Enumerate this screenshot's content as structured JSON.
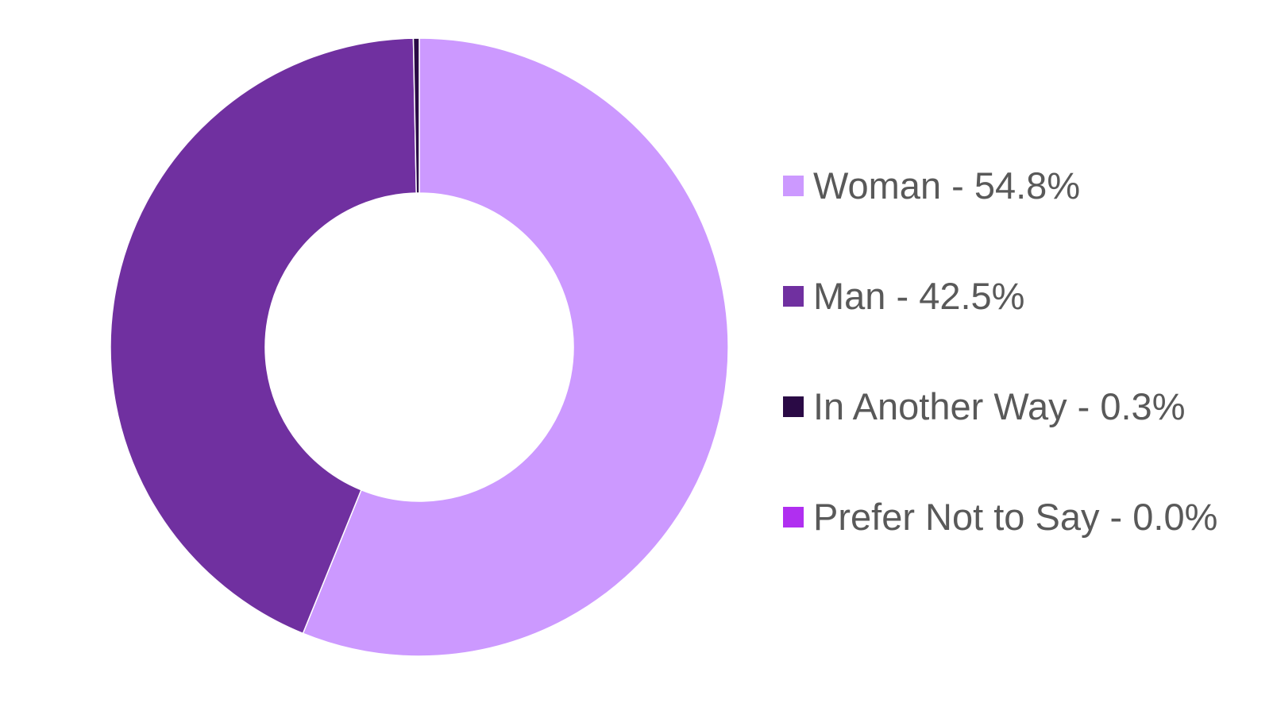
{
  "chart_data": {
    "type": "pie",
    "donut": true,
    "title": "",
    "legend_position": "right",
    "slices": [
      {
        "label": "Woman - 54.8%",
        "value": 54.8,
        "color": "#CC99FF"
      },
      {
        "label": "Man - 42.5%",
        "value": 42.5,
        "color": "#7030A0"
      },
      {
        "label": "In Another Way - 0.3%",
        "value": 0.3,
        "color": "#2A0A45"
      },
      {
        "label": "Prefer Not to Say - 0.0%",
        "value": 0.0,
        "color": "#B02FF0"
      }
    ]
  }
}
